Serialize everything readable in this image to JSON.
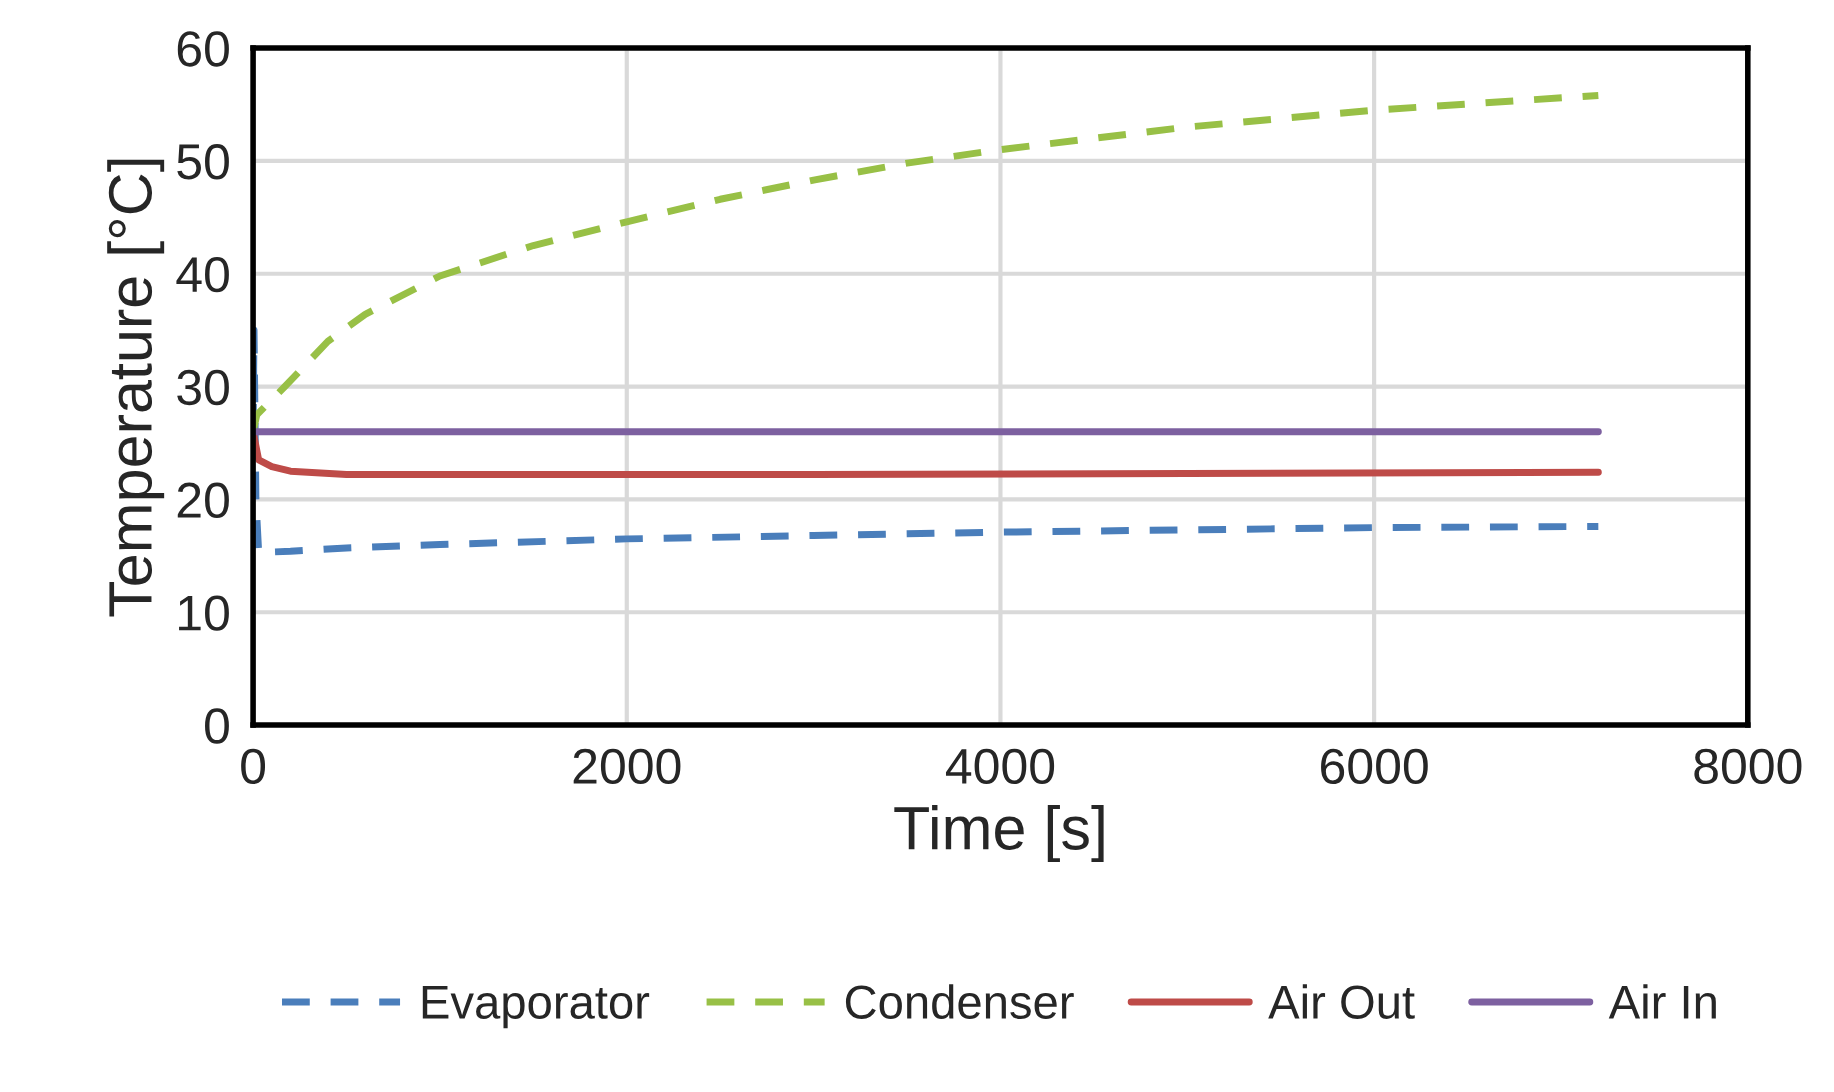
{
  "chart_data": {
    "type": "line",
    "xlabel": "Time [s]",
    "ylabel": "Temperature [°C]",
    "xlim": [
      0,
      8000
    ],
    "xticks": [
      0,
      2000,
      4000,
      6000,
      8000
    ],
    "ylim": [
      0,
      60
    ],
    "yticks": [
      0,
      10,
      20,
      30,
      40,
      50,
      60
    ],
    "grid": true,
    "legend": "bottom",
    "series": [
      {
        "name": "Evaporator",
        "color": "#4a7ebb",
        "line_style": "dashed",
        "x": [
          0,
          5,
          15,
          30,
          200,
          500,
          1000,
          2000,
          3000,
          4000,
          5000,
          6000,
          7200
        ],
        "values": [
          26,
          35,
          20,
          15.3,
          15.4,
          15.7,
          16.0,
          16.5,
          16.8,
          17.1,
          17.3,
          17.5,
          17.6
        ]
      },
      {
        "name": "Condenser",
        "color": "#98c046",
        "line_style": "dashed",
        "x": [
          0,
          20,
          170,
          400,
          600,
          1000,
          1500,
          2000,
          2500,
          3000,
          3500,
          4000,
          5000,
          6000,
          7200
        ],
        "values": [
          26,
          27.5,
          30,
          34,
          36.4,
          39.8,
          42.5,
          44.6,
          46.6,
          48.3,
          49.8,
          51.0,
          53.0,
          54.5,
          55.8
        ]
      },
      {
        "name": "Air Out",
        "color": "#be4b48",
        "line_style": "solid",
        "x": [
          0,
          30,
          100,
          200,
          500,
          1000,
          3000,
          5000,
          7200
        ],
        "values": [
          26,
          23.5,
          22.9,
          22.5,
          22.2,
          22.2,
          22.2,
          22.3,
          22.4
        ]
      },
      {
        "name": "Air In",
        "color": "#7d60a0",
        "line_style": "solid",
        "x": [
          0,
          7200
        ],
        "values": [
          26,
          26
        ]
      }
    ]
  }
}
